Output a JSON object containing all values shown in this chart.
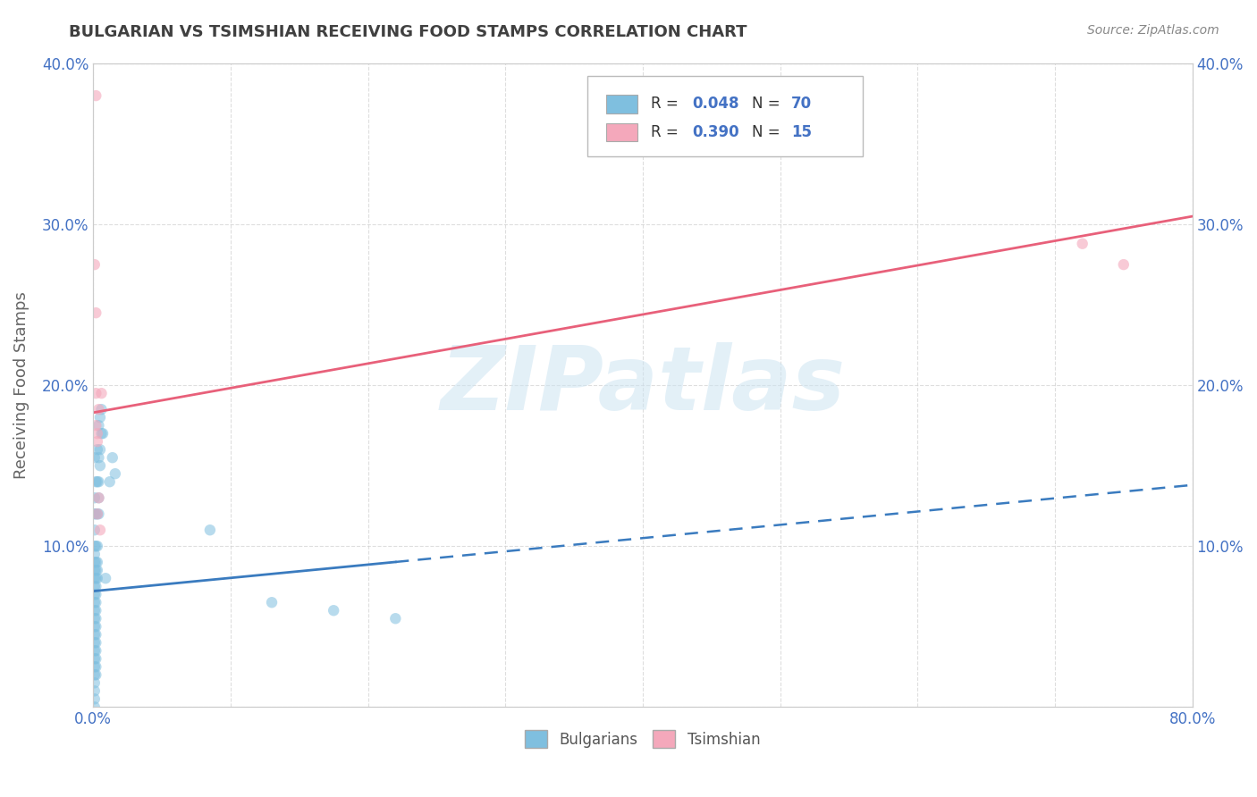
{
  "title": "BULGARIAN VS TSIMSHIAN RECEIVING FOOD STAMPS CORRELATION CHART",
  "source": "Source: ZipAtlas.com",
  "ylabel": "Receiving Food Stamps",
  "watermark": "ZIPatlas",
  "xlim": [
    0.0,
    0.8
  ],
  "ylim": [
    0.0,
    0.4
  ],
  "xticks": [
    0.0,
    0.1,
    0.2,
    0.3,
    0.4,
    0.5,
    0.6,
    0.7,
    0.8
  ],
  "yticks": [
    0.0,
    0.1,
    0.2,
    0.3,
    0.4
  ],
  "ytick_labels_left": [
    "",
    "10.0%",
    "20.0%",
    "30.0%",
    "40.0%"
  ],
  "ytick_labels_right": [
    "",
    "10.0%",
    "20.0%",
    "30.0%",
    "40.0%"
  ],
  "xtick_labels": [
    "0.0%",
    "",
    "",
    "",
    "",
    "",
    "",
    "",
    "80.0%"
  ],
  "blue_color": "#7fbfdf",
  "pink_color": "#f4a8bb",
  "blue_line_color": "#3a7bbf",
  "pink_line_color": "#e8607a",
  "axis_label_color": "#4472c4",
  "title_color": "#404040",
  "blue_scatter": [
    [
      0.001,
      0.155
    ],
    [
      0.001,
      0.13
    ],
    [
      0.001,
      0.12
    ],
    [
      0.001,
      0.11
    ],
    [
      0.001,
      0.1
    ],
    [
      0.001,
      0.095
    ],
    [
      0.001,
      0.09
    ],
    [
      0.001,
      0.085
    ],
    [
      0.001,
      0.08
    ],
    [
      0.001,
      0.075
    ],
    [
      0.001,
      0.07
    ],
    [
      0.001,
      0.065
    ],
    [
      0.001,
      0.06
    ],
    [
      0.001,
      0.055
    ],
    [
      0.001,
      0.05
    ],
    [
      0.001,
      0.045
    ],
    [
      0.001,
      0.04
    ],
    [
      0.001,
      0.035
    ],
    [
      0.001,
      0.03
    ],
    [
      0.001,
      0.025
    ],
    [
      0.001,
      0.02
    ],
    [
      0.001,
      0.015
    ],
    [
      0.001,
      0.01
    ],
    [
      0.001,
      0.005
    ],
    [
      0.001,
      0.0
    ],
    [
      0.002,
      0.14
    ],
    [
      0.002,
      0.12
    ],
    [
      0.002,
      0.1
    ],
    [
      0.002,
      0.09
    ],
    [
      0.002,
      0.085
    ],
    [
      0.002,
      0.08
    ],
    [
      0.002,
      0.075
    ],
    [
      0.002,
      0.07
    ],
    [
      0.002,
      0.065
    ],
    [
      0.002,
      0.06
    ],
    [
      0.002,
      0.055
    ],
    [
      0.002,
      0.05
    ],
    [
      0.002,
      0.045
    ],
    [
      0.002,
      0.04
    ],
    [
      0.002,
      0.035
    ],
    [
      0.002,
      0.03
    ],
    [
      0.002,
      0.025
    ],
    [
      0.002,
      0.02
    ],
    [
      0.003,
      0.16
    ],
    [
      0.003,
      0.14
    ],
    [
      0.003,
      0.12
    ],
    [
      0.003,
      0.1
    ],
    [
      0.003,
      0.09
    ],
    [
      0.003,
      0.085
    ],
    [
      0.003,
      0.08
    ],
    [
      0.004,
      0.175
    ],
    [
      0.004,
      0.155
    ],
    [
      0.004,
      0.14
    ],
    [
      0.004,
      0.13
    ],
    [
      0.004,
      0.12
    ],
    [
      0.005,
      0.18
    ],
    [
      0.005,
      0.16
    ],
    [
      0.005,
      0.15
    ],
    [
      0.006,
      0.185
    ],
    [
      0.006,
      0.17
    ],
    [
      0.007,
      0.17
    ],
    [
      0.009,
      0.08
    ],
    [
      0.012,
      0.14
    ],
    [
      0.014,
      0.155
    ],
    [
      0.016,
      0.145
    ],
    [
      0.085,
      0.11
    ],
    [
      0.13,
      0.065
    ],
    [
      0.175,
      0.06
    ],
    [
      0.22,
      0.055
    ]
  ],
  "pink_scatter": [
    [
      0.002,
      0.38
    ],
    [
      0.001,
      0.275
    ],
    [
      0.002,
      0.245
    ],
    [
      0.002,
      0.195
    ],
    [
      0.002,
      0.175
    ],
    [
      0.003,
      0.17
    ],
    [
      0.003,
      0.165
    ],
    [
      0.004,
      0.185
    ],
    [
      0.006,
      0.195
    ],
    [
      0.003,
      0.12
    ],
    [
      0.004,
      0.13
    ],
    [
      0.005,
      0.11
    ],
    [
      0.72,
      0.288
    ],
    [
      0.75,
      0.275
    ]
  ],
  "blue_trend": [
    0.0,
    0.8,
    0.072,
    0.138
  ],
  "pink_trend": [
    0.0,
    0.8,
    0.183,
    0.305
  ]
}
